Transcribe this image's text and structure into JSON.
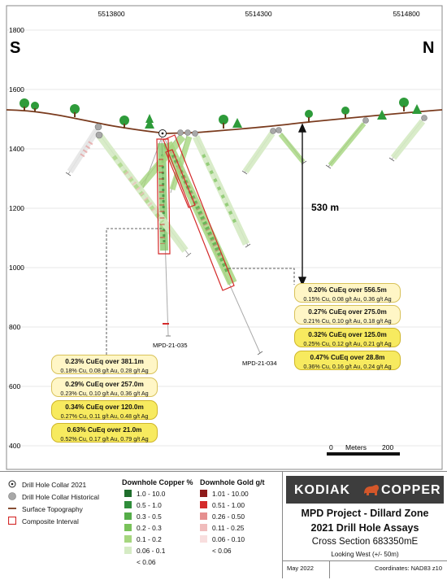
{
  "axes": {
    "x_ticks": [
      "5513800",
      "5514300",
      "5514800"
    ],
    "y_ticks": [
      "1800",
      "1600",
      "1400",
      "1200",
      "1000",
      "800",
      "600",
      "400"
    ],
    "south_label": "S",
    "north_label": "N"
  },
  "depth_label": "530 m",
  "scale_bar": {
    "zero": "0",
    "unit": "Meters",
    "max": "200"
  },
  "drill_holes": [
    {
      "id": "MPD-21-035",
      "label": "MPD-21-035"
    },
    {
      "id": "MPD-21-034",
      "label": "MPD-21-034"
    }
  ],
  "assays_right": [
    {
      "main": "0.20% CuEq over 556.5m",
      "sub": "0.15% Cu, 0.08 g/t Au, 0.36 g/t Ag"
    },
    {
      "main": "0.27% CuEq over 275.0m",
      "sub": "0.21% Cu, 0.10 g/t Au, 0.18 g/t Ag"
    },
    {
      "main": "0.32% CuEq over 125.0m",
      "sub": "0.25% Cu, 0.12 g/t Au, 0.21 g/t Ag"
    },
    {
      "main": "0.47% CuEq over 28.8m",
      "sub": "0.36% Cu, 0.16 g/t Au, 0.24 g/t Ag"
    }
  ],
  "assays_left": [
    {
      "main": "0.23% CuEq over 381.1m",
      "sub": "0.18% Cu, 0.08 g/t Au, 0.28 g/t Ag"
    },
    {
      "main": "0.29% CuEq over 257.0m",
      "sub": "0.23% Cu, 0.10 g/t Au, 0.36 g/t Ag"
    },
    {
      "main": "0.34% CuEq over 120.0m",
      "sub": "0.27% Cu, 0.11 g/t Au, 0.48 g/t Ag"
    },
    {
      "main": "0.63% CuEq over 21.0m",
      "sub": "0.52% Cu, 0.17 g/t Au, 0.79 g/t Ag"
    }
  ],
  "legend": {
    "symbols": [
      "Drill Hole Collar 2021",
      "Drill Hole Collar Historical",
      "Surface Topography",
      "Composite Interval"
    ],
    "copper": {
      "title": "Downhole Copper %",
      "items": [
        {
          "label": "1.0 - 10.0",
          "color": "#1f6e2c"
        },
        {
          "label": "0.5 - 1.0",
          "color": "#2f8d3a"
        },
        {
          "label": "0.3 - 0.5",
          "color": "#55ad48"
        },
        {
          "label": "0.2 - 0.3",
          "color": "#79c25a"
        },
        {
          "label": "0.1 - 0.2",
          "color": "#a6d67f"
        },
        {
          "label": "0.06 - 0.1",
          "color": "#d5ebc4"
        },
        {
          "label": "< 0.06",
          "color": ""
        }
      ]
    },
    "gold": {
      "title": "Downhole Gold g/t",
      "items": [
        {
          "label": "1.01 - 10.00",
          "color": "#8e1b1b"
        },
        {
          "label": "0.51 - 1.00",
          "color": "#d42a2a"
        },
        {
          "label": "0.26 - 0.50",
          "color": "#e58f8f"
        },
        {
          "label": "0.11 - 0.25",
          "color": "#f0bcbc"
        },
        {
          "label": "0.06 - 0.10",
          "color": "#f8dede"
        },
        {
          "label": "< 0.06",
          "color": ""
        }
      ]
    }
  },
  "title_block": {
    "logo_left": "KODIAK",
    "logo_right": "COPPER",
    "project": "MPD Project - Dillard Zone",
    "subtitle": "2021 Drill Hole Assays",
    "section": "Cross Section 683350mE",
    "view": "Looking West (+/- 50m)",
    "date": "May 2022",
    "coordinates": "Coordinates: NAD83 z10"
  },
  "colors": {
    "topography": "#7a3b1e",
    "composite": "#d42a2a",
    "tree": "#2e9b3a",
    "logo_bg": "#3d3d3d",
    "logo_accent": "#d4572a"
  }
}
